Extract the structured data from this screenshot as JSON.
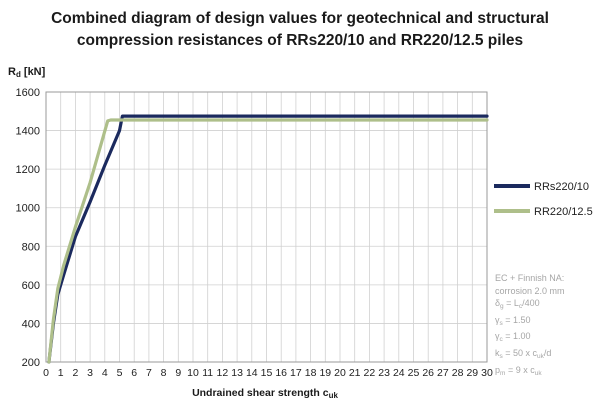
{
  "chart_data": {
    "type": "line",
    "title_line1": "Combined diagram of design values for geotechnical and structural",
    "title_line2": "compression resistances of RRs220/10 and RR220/12.5 piles",
    "ylabel_main": "R",
    "ylabel_sub": "d",
    "ylabel_unit": " [kN]",
    "xlabel_main": "Undrained shear strength c",
    "xlabel_sub": "uk",
    "xlim": [
      0,
      30
    ],
    "ylim": [
      200,
      1600
    ],
    "xticks": [
      0,
      1,
      2,
      3,
      4,
      5,
      6,
      7,
      8,
      9,
      10,
      11,
      12,
      13,
      14,
      15,
      16,
      17,
      18,
      19,
      20,
      21,
      22,
      23,
      24,
      25,
      26,
      27,
      28,
      29,
      30
    ],
    "yticks": [
      200,
      400,
      600,
      800,
      1000,
      1200,
      1400,
      1600
    ],
    "grid": true,
    "legend_position": "right",
    "series": [
      {
        "name": "RRs220/10",
        "color": "#1b2a5e",
        "x": [
          0.2,
          0.5,
          0.8,
          1.2,
          2.0,
          3.0,
          4.0,
          5.0,
          5.2,
          30
        ],
        "y": [
          200,
          400,
          550,
          650,
          850,
          1030,
          1220,
          1400,
          1475,
          1475
        ]
      },
      {
        "name": "RR220/12.5",
        "color": "#aebf8a",
        "x": [
          0.2,
          0.5,
          0.8,
          1.2,
          2.0,
          3.0,
          4.2,
          4.4,
          30
        ],
        "y": [
          200,
          420,
          580,
          700,
          900,
          1130,
          1450,
          1455,
          1455
        ]
      }
    ]
  },
  "notes": {
    "line1": "EC + Finnish NA:",
    "line2": "corrosion 2.0 mm",
    "line3_main": "δ",
    "line3_sub": "g",
    "line3_rest": " = L",
    "line3_sub2": "c",
    "line3_end": "/400",
    "line4_main": "γ",
    "line4_sub": "s",
    "line4_rest": " = 1.50",
    "line5_main": "γ",
    "line5_sub": "c",
    "line5_rest": " = 1.00",
    "line6_main": "k",
    "line6_sub": "s",
    "line6_rest": " = 50 x c",
    "line6_sub2": "uk",
    "line6_end": "/d",
    "line7_main": "p",
    "line7_sub": "m",
    "line7_rest": " = 9 x c",
    "line7_sub2": "uk"
  }
}
